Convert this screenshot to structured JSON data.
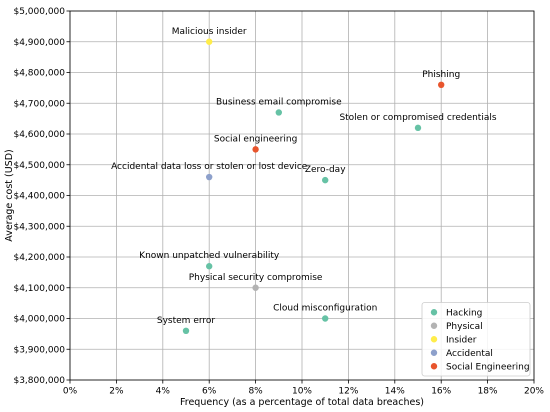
{
  "chart_data": {
    "type": "scatter",
    "xlabel": "Frequency (as a percentage of total data breaches)",
    "ylabel": "Average cost (USD)",
    "xlim": [
      0,
      20
    ],
    "ylim": [
      3800000,
      5000000
    ],
    "x_ticks": [
      0,
      2,
      4,
      6,
      8,
      10,
      12,
      14,
      16,
      18,
      20
    ],
    "y_ticks": [
      3800000,
      3900000,
      4000000,
      4100000,
      4200000,
      4300000,
      4400000,
      4500000,
      4600000,
      4700000,
      4800000,
      4900000,
      5000000
    ],
    "x_tick_labels": [
      "0%",
      "2%",
      "4%",
      "6%",
      "8%",
      "10%",
      "12%",
      "14%",
      "16%",
      "18%",
      "20%"
    ],
    "y_tick_labels": [
      "$3,800,000",
      "$3,900,000",
      "$4,000,000",
      "$4,100,000",
      "$4,200,000",
      "$4,300,000",
      "$4,400,000",
      "$4,500,000",
      "$4,600,000",
      "$4,700,000",
      "$4,800,000",
      "$4,900,000",
      "$5,000,000"
    ],
    "grid": true,
    "legend_position": "bottom-right",
    "series": [
      {
        "name": "Hacking",
        "color": "#66c2a5",
        "points": [
          {
            "label": "Business email compromise",
            "x": 9,
            "y": 4670000
          },
          {
            "label": "Stolen or compromised credentials",
            "x": 15,
            "y": 4620000
          },
          {
            "label": "Zero-day",
            "x": 11,
            "y": 4450000
          },
          {
            "label": "Known unpatched vulnerability",
            "x": 6,
            "y": 4170000
          },
          {
            "label": "Cloud misconfiguration",
            "x": 11,
            "y": 4000000
          },
          {
            "label": "System error",
            "x": 5,
            "y": 3960000
          }
        ]
      },
      {
        "name": "Physical",
        "color": "#b3b3b3",
        "points": [
          {
            "label": "Physical security compromise",
            "x": 8,
            "y": 4100000
          }
        ]
      },
      {
        "name": "Insider",
        "color": "#ffed4a",
        "points": [
          {
            "label": "Malicious insider",
            "x": 6,
            "y": 4900000
          }
        ]
      },
      {
        "name": "Accidental",
        "color": "#8da0cb",
        "points": [
          {
            "label": "Accidental data loss or stolen or lost device",
            "x": 6,
            "y": 4460000
          }
        ]
      },
      {
        "name": "Social Engineering",
        "color": "#e8552d",
        "points": [
          {
            "label": "Phishing",
            "x": 16,
            "y": 4760000
          },
          {
            "label": "Social engineering",
            "x": 8,
            "y": 4550000
          }
        ]
      }
    ]
  }
}
